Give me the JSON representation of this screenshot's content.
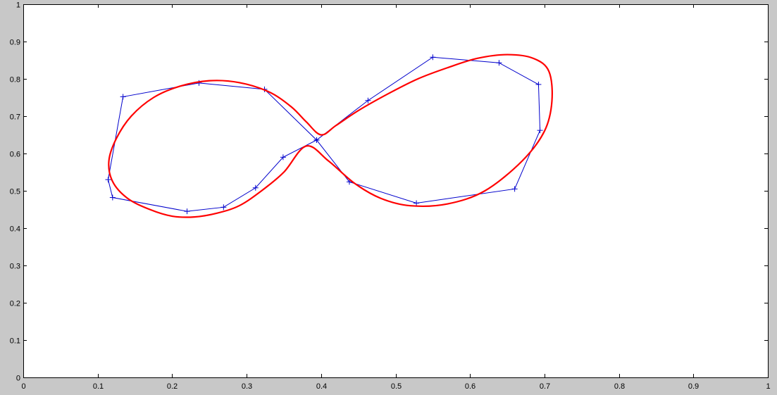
{
  "chart_data": {
    "type": "line",
    "title": "",
    "xlabel": "",
    "ylabel": "",
    "xlim": [
      0,
      1
    ],
    "ylim": [
      0,
      1
    ],
    "xticks": [
      0,
      0.1,
      0.2,
      0.3,
      0.4,
      0.5,
      0.6,
      0.7,
      0.8,
      0.9,
      1
    ],
    "yticks": [
      0,
      0.1,
      0.2,
      0.3,
      0.4,
      0.5,
      0.6,
      0.7,
      0.8,
      0.9,
      1
    ],
    "xtick_labels": [
      "0",
      "0.1",
      "0.2",
      "0.3",
      "0.4",
      "0.5",
      "0.6",
      "0.7",
      "0.8",
      "0.9",
      "1"
    ],
    "ytick_labels": [
      "0",
      "0.1",
      "0.2",
      "0.3",
      "0.4",
      "0.5",
      "0.6",
      "0.7",
      "0.8",
      "0.9",
      "1"
    ],
    "grid": false,
    "legend": "none",
    "background_color": "#c8c8c8",
    "axes_color": "#ffffff",
    "series": [
      {
        "style": "line-with-plus-markers",
        "color": "#0000cc",
        "closed": true,
        "x": [
          0.134,
          0.236,
          0.324,
          0.394,
          0.463,
          0.55,
          0.639,
          0.692,
          0.694,
          0.66,
          0.528,
          0.438,
          0.394,
          0.349,
          0.312,
          0.269,
          0.22,
          0.12,
          0.114
        ],
        "y": [
          0.752,
          0.789,
          0.772,
          0.636,
          0.742,
          0.858,
          0.843,
          0.785,
          0.662,
          0.505,
          0.467,
          0.524,
          0.636,
          0.59,
          0.508,
          0.456,
          0.445,
          0.482,
          0.53
        ]
      },
      {
        "style": "smooth-closed-curve",
        "color": "#ff0000",
        "closed": true,
        "x": [
          0.115,
          0.125,
          0.145,
          0.175,
          0.21,
          0.25,
          0.29,
          0.33,
          0.36,
          0.38,
          0.4,
          0.42,
          0.45,
          0.49,
          0.53,
          0.57,
          0.61,
          0.65,
          0.685,
          0.706,
          0.71,
          0.7,
          0.67,
          0.62,
          0.57,
          0.52,
          0.48,
          0.445,
          0.41,
          0.38,
          0.35,
          0.32,
          0.29,
          0.26,
          0.23,
          0.2,
          0.17,
          0.14,
          0.12
        ],
        "y": [
          0.58,
          0.64,
          0.7,
          0.75,
          0.78,
          0.795,
          0.79,
          0.765,
          0.725,
          0.685,
          0.65,
          0.675,
          0.715,
          0.76,
          0.8,
          0.83,
          0.855,
          0.865,
          0.855,
          0.82,
          0.74,
          0.66,
          0.58,
          0.5,
          0.465,
          0.46,
          0.48,
          0.52,
          0.58,
          0.62,
          0.55,
          0.5,
          0.46,
          0.44,
          0.43,
          0.432,
          0.45,
          0.48,
          0.525
        ]
      }
    ]
  }
}
